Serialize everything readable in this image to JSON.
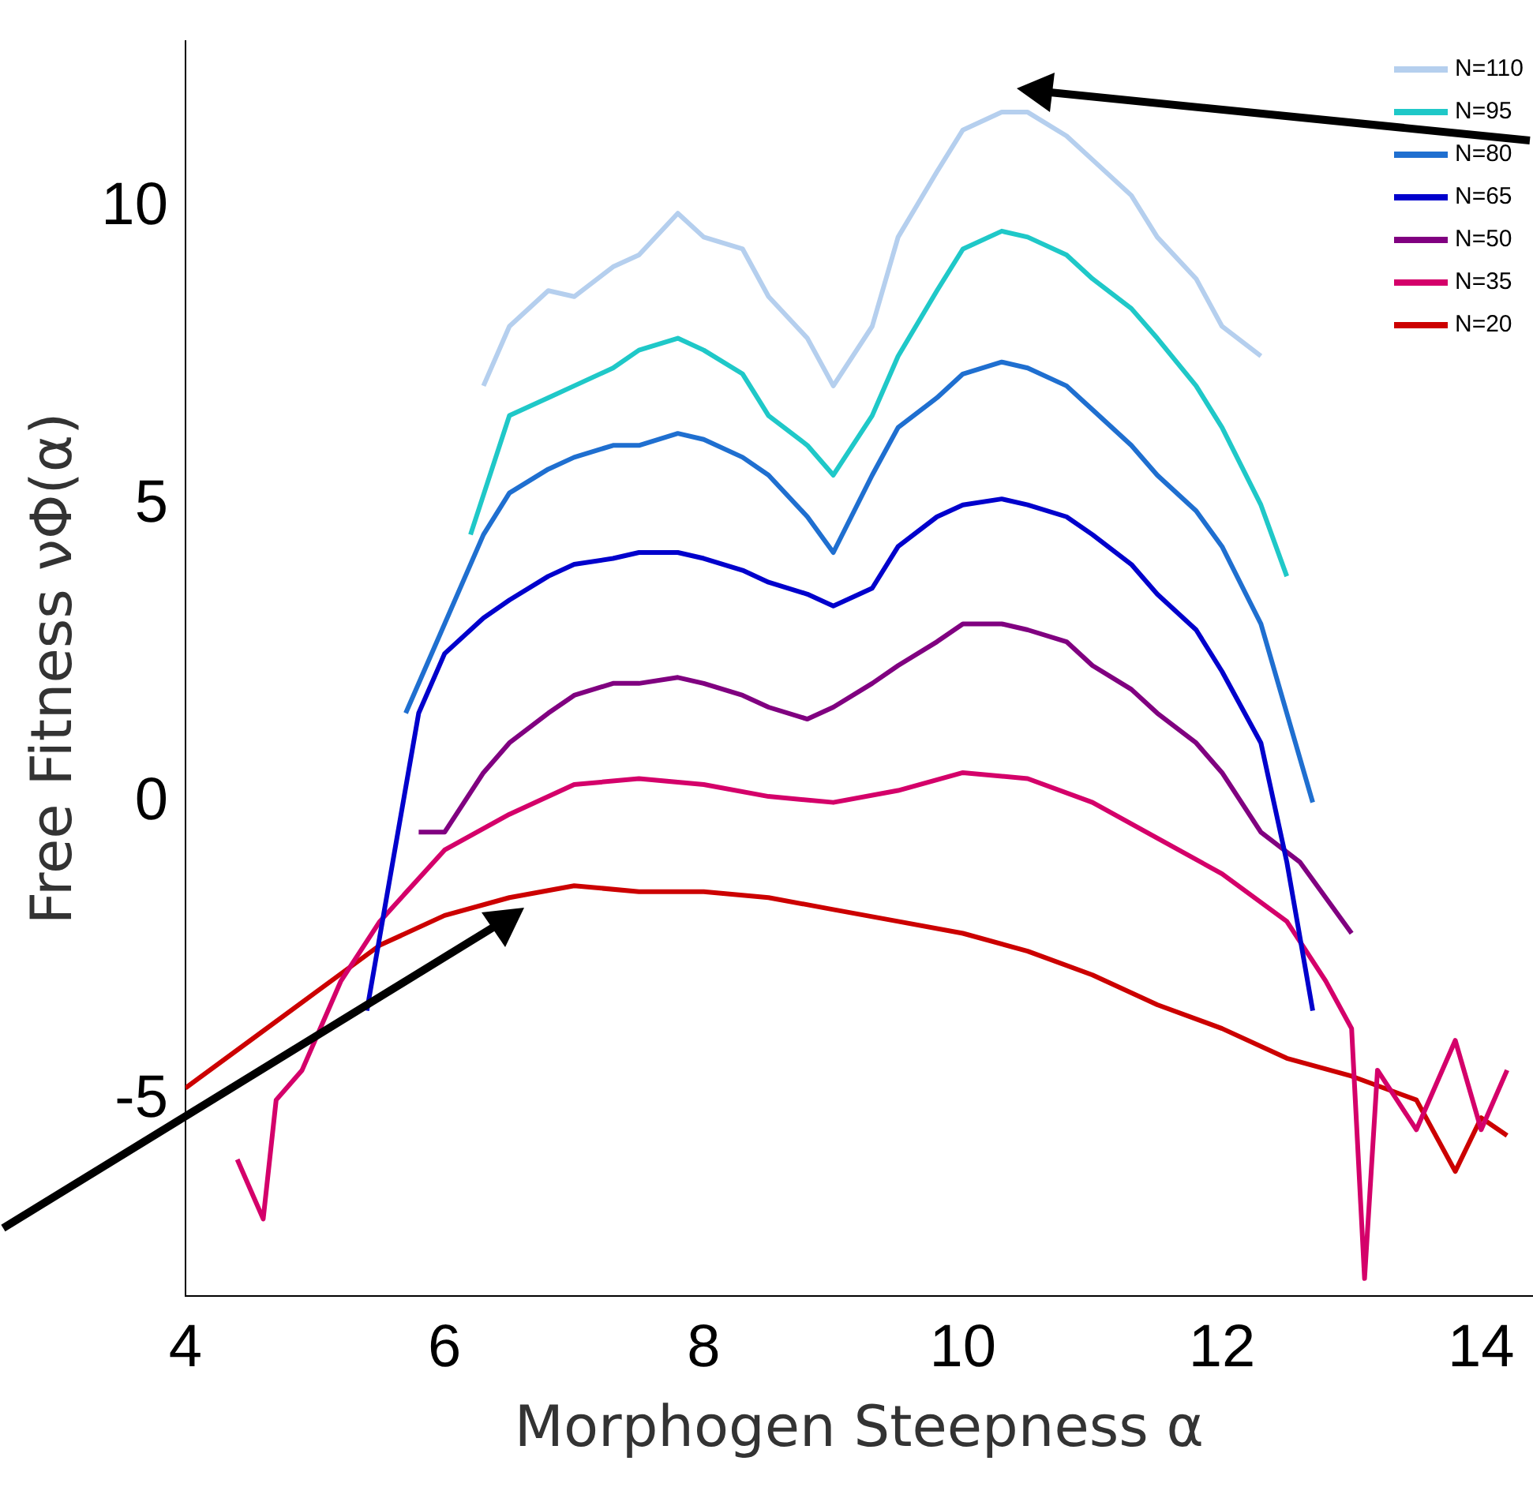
{
  "chart_data": {
    "type": "line",
    "xlabel": "Morphogen Steepness α",
    "ylabel": "Free Fitness νΦ(α)",
    "xlim": [
      4,
      14.4
    ],
    "xticks": [
      4,
      6,
      8,
      10,
      12,
      14
    ],
    "ylim": [
      -8.3,
      12.8
    ],
    "yticks": [
      -5,
      0,
      5,
      10
    ],
    "grid": false,
    "legend": "top right",
    "marker": "none",
    "line_style": "solid",
    "series": [
      {
        "name": "N=110",
        "color": "#b5cfee",
        "x": [
          6.3,
          6.5,
          6.8,
          7,
          7.3,
          7.5,
          7.8,
          8,
          8.3,
          8.5,
          8.8,
          9,
          9.3,
          9.5,
          9.8,
          10,
          10.3,
          10.5,
          10.8,
          11,
          11.3,
          11.5,
          11.8,
          12,
          12.3
        ],
        "values": [
          7.0,
          8.0,
          8.6,
          8.5,
          9.0,
          9.2,
          9.9,
          9.5,
          9.3,
          8.5,
          7.8,
          7.0,
          8.0,
          9.5,
          10.6,
          11.3,
          11.6,
          11.6,
          11.2,
          10.8,
          10.2,
          9.5,
          8.8,
          8.0,
          7.5
        ]
      },
      {
        "name": "N=95",
        "color": "#1fc8c8",
        "x": [
          6.2,
          6.5,
          6.8,
          7,
          7.3,
          7.5,
          7.8,
          8,
          8.3,
          8.5,
          8.8,
          9,
          9.3,
          9.5,
          9.8,
          10,
          10.3,
          10.5,
          10.8,
          11,
          11.3,
          11.5,
          11.8,
          12,
          12.3,
          12.5
        ],
        "values": [
          4.5,
          6.5,
          6.8,
          7.0,
          7.3,
          7.6,
          7.8,
          7.6,
          7.2,
          6.5,
          6.0,
          5.5,
          6.5,
          7.5,
          8.6,
          9.3,
          9.6,
          9.5,
          9.2,
          8.8,
          8.3,
          7.8,
          7.0,
          6.3,
          5.0,
          3.8
        ]
      },
      {
        "name": "N=80",
        "color": "#1f6fd0",
        "x": [
          5.7,
          6,
          6.3,
          6.5,
          6.8,
          7,
          7.3,
          7.5,
          7.8,
          8,
          8.3,
          8.5,
          8.8,
          9,
          9.3,
          9.5,
          9.8,
          10,
          10.3,
          10.5,
          10.8,
          11,
          11.3,
          11.5,
          11.8,
          12,
          12.3,
          12.5,
          12.7
        ],
        "values": [
          1.5,
          3.0,
          4.5,
          5.2,
          5.6,
          5.8,
          6.0,
          6.0,
          6.2,
          6.1,
          5.8,
          5.5,
          4.8,
          4.2,
          5.5,
          6.3,
          6.8,
          7.2,
          7.4,
          7.3,
          7.0,
          6.6,
          6.0,
          5.5,
          4.9,
          4.3,
          3.0,
          1.5,
          0.0
        ]
      },
      {
        "name": "N=65",
        "color": "#0000cc",
        "x": [
          5.4,
          5.6,
          5.8,
          6,
          6.3,
          6.5,
          6.8,
          7,
          7.3,
          7.5,
          7.8,
          8,
          8.3,
          8.5,
          8.8,
          9,
          9.3,
          9.5,
          9.8,
          10,
          10.3,
          10.5,
          10.8,
          11,
          11.3,
          11.5,
          11.8,
          12,
          12.3,
          12.5,
          12.7
        ],
        "values": [
          -3.5,
          -1.0,
          1.5,
          2.5,
          3.1,
          3.4,
          3.8,
          4.0,
          4.1,
          4.2,
          4.2,
          4.1,
          3.9,
          3.7,
          3.5,
          3.3,
          3.6,
          4.3,
          4.8,
          5.0,
          5.1,
          5.0,
          4.8,
          4.5,
          4.0,
          3.5,
          2.9,
          2.2,
          1.0,
          -1.0,
          -3.5
        ]
      },
      {
        "name": "N=50",
        "color": "#800080",
        "x": [
          5.8,
          6,
          6.3,
          6.5,
          6.8,
          7,
          7.3,
          7.5,
          7.8,
          8,
          8.3,
          8.5,
          8.8,
          9,
          9.3,
          9.5,
          9.8,
          10,
          10.3,
          10.5,
          10.8,
          11,
          11.3,
          11.5,
          11.8,
          12,
          12.3,
          12.6,
          12.8,
          13
        ],
        "values": [
          -0.5,
          -0.5,
          0.5,
          1.0,
          1.5,
          1.8,
          2.0,
          2.0,
          2.1,
          2.0,
          1.8,
          1.6,
          1.4,
          1.6,
          2.0,
          2.3,
          2.7,
          3.0,
          3.0,
          2.9,
          2.7,
          2.3,
          1.9,
          1.5,
          1.0,
          0.5,
          -0.5,
          -1.0,
          -1.6,
          -2.2
        ]
      },
      {
        "name": "N=35",
        "color": "#d4006a",
        "x": [
          4.4,
          4.6,
          4.7,
          4.9,
          5.2,
          5.5,
          6,
          6.5,
          7,
          7.5,
          8,
          8.5,
          9,
          9.5,
          10,
          10.5,
          11,
          11.5,
          12,
          12.5,
          12.8,
          13,
          13.1,
          13.2,
          13.5,
          13.8,
          14,
          14.2
        ],
        "values": [
          -6.0,
          -7.0,
          -5.0,
          -4.5,
          -3.0,
          -2.0,
          -0.8,
          -0.2,
          0.3,
          0.4,
          0.3,
          0.1,
          0.0,
          0.2,
          0.5,
          0.4,
          0.0,
          -0.6,
          -1.2,
          -2.0,
          -3.0,
          -3.8,
          -8.0,
          -4.5,
          -5.5,
          -4.0,
          -5.5,
          -4.5
        ]
      },
      {
        "name": "N=20",
        "color": "#cc0000",
        "x": [
          4,
          4.5,
          5,
          5.5,
          6,
          6.5,
          7,
          7.5,
          8,
          8.5,
          9,
          9.5,
          10,
          10.5,
          11,
          11.5,
          12,
          12.5,
          13,
          13.5,
          13.8,
          14,
          14.2
        ],
        "values": [
          -4.8,
          -4.0,
          -3.2,
          -2.4,
          -1.9,
          -1.6,
          -1.4,
          -1.5,
          -1.5,
          -1.6,
          -1.8,
          -2.0,
          -2.2,
          -2.5,
          -2.9,
          -3.4,
          -3.8,
          -4.3,
          -4.6,
          -5.0,
          -6.2,
          -5.3,
          -5.6
        ]
      }
    ]
  }
}
